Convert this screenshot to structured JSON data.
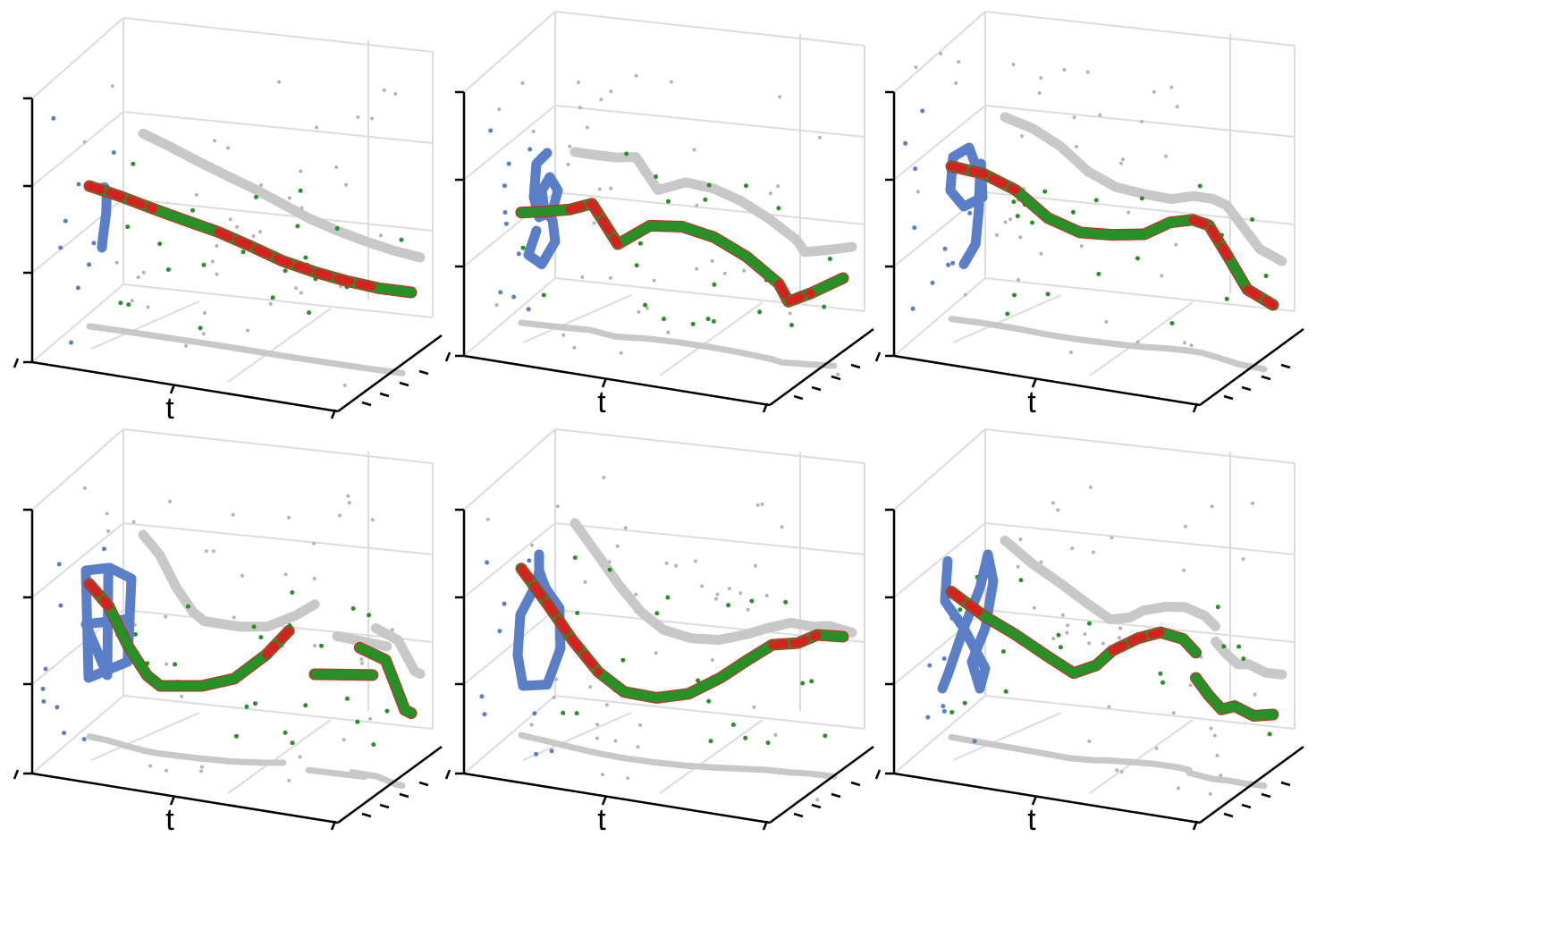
{
  "figure": {
    "background": "#ffffff"
  },
  "style": {
    "wall": "#dcdcdc",
    "axis": "#000000",
    "input_color": "#5b7ec9",
    "prediction_color": "#d92020",
    "target_color": "#279127",
    "projection_color": "#c8c8c8",
    "noise_color": "#b4b4b4"
  },
  "chart_data": [
    {
      "type": "scatter",
      "xlabel": "t",
      "glyph": [
        [
          0.3,
          0.34
        ],
        [
          0.45,
          0.33
        ],
        [
          0.49,
          0.36
        ],
        [
          0.48,
          0.52
        ],
        [
          0.42,
          0.7
        ],
        [
          0.4,
          0.78
        ]
      ],
      "trajectory": [
        [
          0.0,
          0.73
        ],
        [
          0.1,
          0.7
        ],
        [
          0.2,
          0.66
        ],
        [
          0.3,
          0.62
        ],
        [
          0.4,
          0.58
        ],
        [
          0.5,
          0.52
        ],
        [
          0.6,
          0.45
        ],
        [
          0.7,
          0.4
        ],
        [
          0.8,
          0.36
        ],
        [
          0.9,
          0.33
        ],
        [
          1.0,
          0.32
        ]
      ],
      "red_highlights": [
        [
          0.0,
          0.13
        ],
        [
          0.47,
          0.86
        ]
      ],
      "extra_segments": []
    },
    {
      "type": "scatter",
      "xlabel": "t",
      "glyph": [
        [
          0.65,
          0.12
        ],
        [
          0.45,
          0.2
        ],
        [
          0.4,
          0.45
        ],
        [
          0.5,
          0.6
        ],
        [
          0.75,
          0.55
        ],
        [
          0.85,
          0.4
        ],
        [
          0.7,
          0.3
        ],
        [
          0.55,
          0.4
        ],
        [
          0.6,
          0.55
        ],
        [
          0.75,
          0.62
        ],
        [
          0.8,
          0.78
        ],
        [
          0.55,
          0.95
        ],
        [
          0.3,
          0.88
        ],
        [
          0.45,
          0.7
        ]
      ],
      "trajectory": [
        [
          0.0,
          0.56
        ],
        [
          0.07,
          0.58
        ],
        [
          0.15,
          0.61
        ],
        [
          0.22,
          0.66
        ],
        [
          0.3,
          0.45
        ],
        [
          0.4,
          0.58
        ],
        [
          0.5,
          0.6
        ],
        [
          0.6,
          0.56
        ],
        [
          0.7,
          0.46
        ],
        [
          0.8,
          0.3
        ],
        [
          0.83,
          0.18
        ],
        [
          0.9,
          0.25
        ],
        [
          1.0,
          0.38
        ]
      ],
      "red_highlights": [
        [
          0.22,
          0.28
        ],
        [
          0.8,
          0.86
        ]
      ],
      "extra_segments": []
    },
    {
      "type": "scatter",
      "xlabel": "t",
      "glyph": [
        [
          0.7,
          0.3
        ],
        [
          0.5,
          0.08
        ],
        [
          0.2,
          0.15
        ],
        [
          0.15,
          0.4
        ],
        [
          0.4,
          0.52
        ],
        [
          0.75,
          0.45
        ],
        [
          0.72,
          0.2
        ],
        [
          0.7,
          0.3
        ],
        [
          0.68,
          0.55
        ],
        [
          0.62,
          0.8
        ],
        [
          0.4,
          0.95
        ]
      ],
      "trajectory": [
        [
          0.0,
          0.8
        ],
        [
          0.1,
          0.79
        ],
        [
          0.2,
          0.73
        ],
        [
          0.3,
          0.6
        ],
        [
          0.4,
          0.54
        ],
        [
          0.5,
          0.55
        ],
        [
          0.6,
          0.58
        ],
        [
          0.68,
          0.68
        ],
        [
          0.75,
          0.72
        ],
        [
          0.8,
          0.7
        ],
        [
          0.86,
          0.5
        ],
        [
          0.92,
          0.28
        ],
        [
          1.0,
          0.18
        ]
      ],
      "red_highlights": [
        [
          0.0,
          0.16
        ],
        [
          0.7,
          0.8
        ],
        [
          0.92,
          1.0
        ]
      ],
      "extra_segments": []
    },
    {
      "type": "scatter",
      "xlabel": "t",
      "glyph": [
        [
          0.1,
          0.12
        ],
        [
          0.55,
          0.1
        ],
        [
          0.95,
          0.18
        ],
        [
          0.88,
          0.8
        ],
        [
          0.15,
          0.92
        ],
        [
          0.1,
          0.12
        ],
        [
          0.52,
          0.1
        ],
        [
          0.5,
          0.9
        ],
        [
          0.1,
          0.52
        ],
        [
          0.92,
          0.48
        ]
      ],
      "trajectory": [
        [
          0.0,
          0.8
        ],
        [
          0.06,
          0.7
        ],
        [
          0.12,
          0.5
        ],
        [
          0.18,
          0.35
        ],
        [
          0.22,
          0.3
        ],
        [
          0.35,
          0.32
        ],
        [
          0.45,
          0.38
        ],
        [
          0.55,
          0.55
        ],
        [
          0.62,
          0.72
        ]
      ],
      "red_highlights": [
        [
          0.0,
          0.12
        ],
        [
          0.88,
          1.0
        ]
      ],
      "extra_segments": [
        [
          [
            0.7,
            0.46
          ],
          [
            0.88,
            0.5
          ]
        ],
        [
          [
            0.84,
            0.68
          ],
          [
            0.92,
            0.62
          ],
          [
            0.95,
            0.45
          ],
          [
            0.98,
            0.27
          ],
          [
            1.0,
            0.25
          ]
        ]
      ]
    },
    {
      "type": "scatter",
      "xlabel": "t",
      "glyph": [
        [
          0.5,
          0.0
        ],
        [
          0.5,
          0.12
        ],
        [
          0.45,
          0.22
        ],
        [
          0.15,
          0.45
        ],
        [
          0.1,
          0.75
        ],
        [
          0.2,
          0.98
        ],
        [
          0.65,
          0.97
        ],
        [
          0.9,
          0.7
        ],
        [
          0.88,
          0.4
        ],
        [
          0.62,
          0.25
        ],
        [
          0.5,
          0.12
        ]
      ],
      "trajectory": [
        [
          0.0,
          0.88
        ],
        [
          0.08,
          0.72
        ],
        [
          0.16,
          0.54
        ],
        [
          0.24,
          0.38
        ],
        [
          0.32,
          0.28
        ],
        [
          0.42,
          0.26
        ],
        [
          0.52,
          0.3
        ],
        [
          0.62,
          0.42
        ],
        [
          0.7,
          0.55
        ],
        [
          0.78,
          0.68
        ],
        [
          0.86,
          0.72
        ],
        [
          0.92,
          0.8
        ],
        [
          1.0,
          0.82
        ]
      ],
      "red_highlights": [
        [
          0.0,
          0.22
        ],
        [
          0.76,
          0.86
        ]
      ],
      "extra_segments": []
    },
    {
      "type": "scatter",
      "xlabel": "t",
      "glyph": [
        [
          0.1,
          0.05
        ],
        [
          0.05,
          0.35
        ],
        [
          0.4,
          0.55
        ],
        [
          0.8,
          0.85
        ],
        [
          0.7,
          1.0
        ],
        [
          0.55,
          0.8
        ],
        [
          0.8,
          0.55
        ],
        [
          0.95,
          0.2
        ],
        [
          0.85,
          0.0
        ],
        [
          0.7,
          0.25
        ],
        [
          0.4,
          0.55
        ],
        [
          0.1,
          0.9
        ],
        [
          0.0,
          1.0
        ]
      ],
      "trajectory": [
        [
          0.0,
          0.76
        ],
        [
          0.1,
          0.66
        ],
        [
          0.2,
          0.58
        ],
        [
          0.3,
          0.48
        ],
        [
          0.38,
          0.4
        ],
        [
          0.45,
          0.46
        ],
        [
          0.5,
          0.56
        ],
        [
          0.58,
          0.66
        ],
        [
          0.65,
          0.72
        ],
        [
          0.72,
          0.7
        ],
        [
          0.76,
          0.62
        ]
      ],
      "red_highlights": [
        [
          0.0,
          0.1
        ],
        [
          0.6,
          0.72
        ]
      ],
      "extra_segments": [
        [
          [
            0.76,
            0.45
          ],
          [
            0.8,
            0.34
          ],
          [
            0.84,
            0.25
          ],
          [
            0.88,
            0.28
          ],
          [
            0.94,
            0.22
          ],
          [
            1.0,
            0.24
          ]
        ]
      ]
    }
  ]
}
